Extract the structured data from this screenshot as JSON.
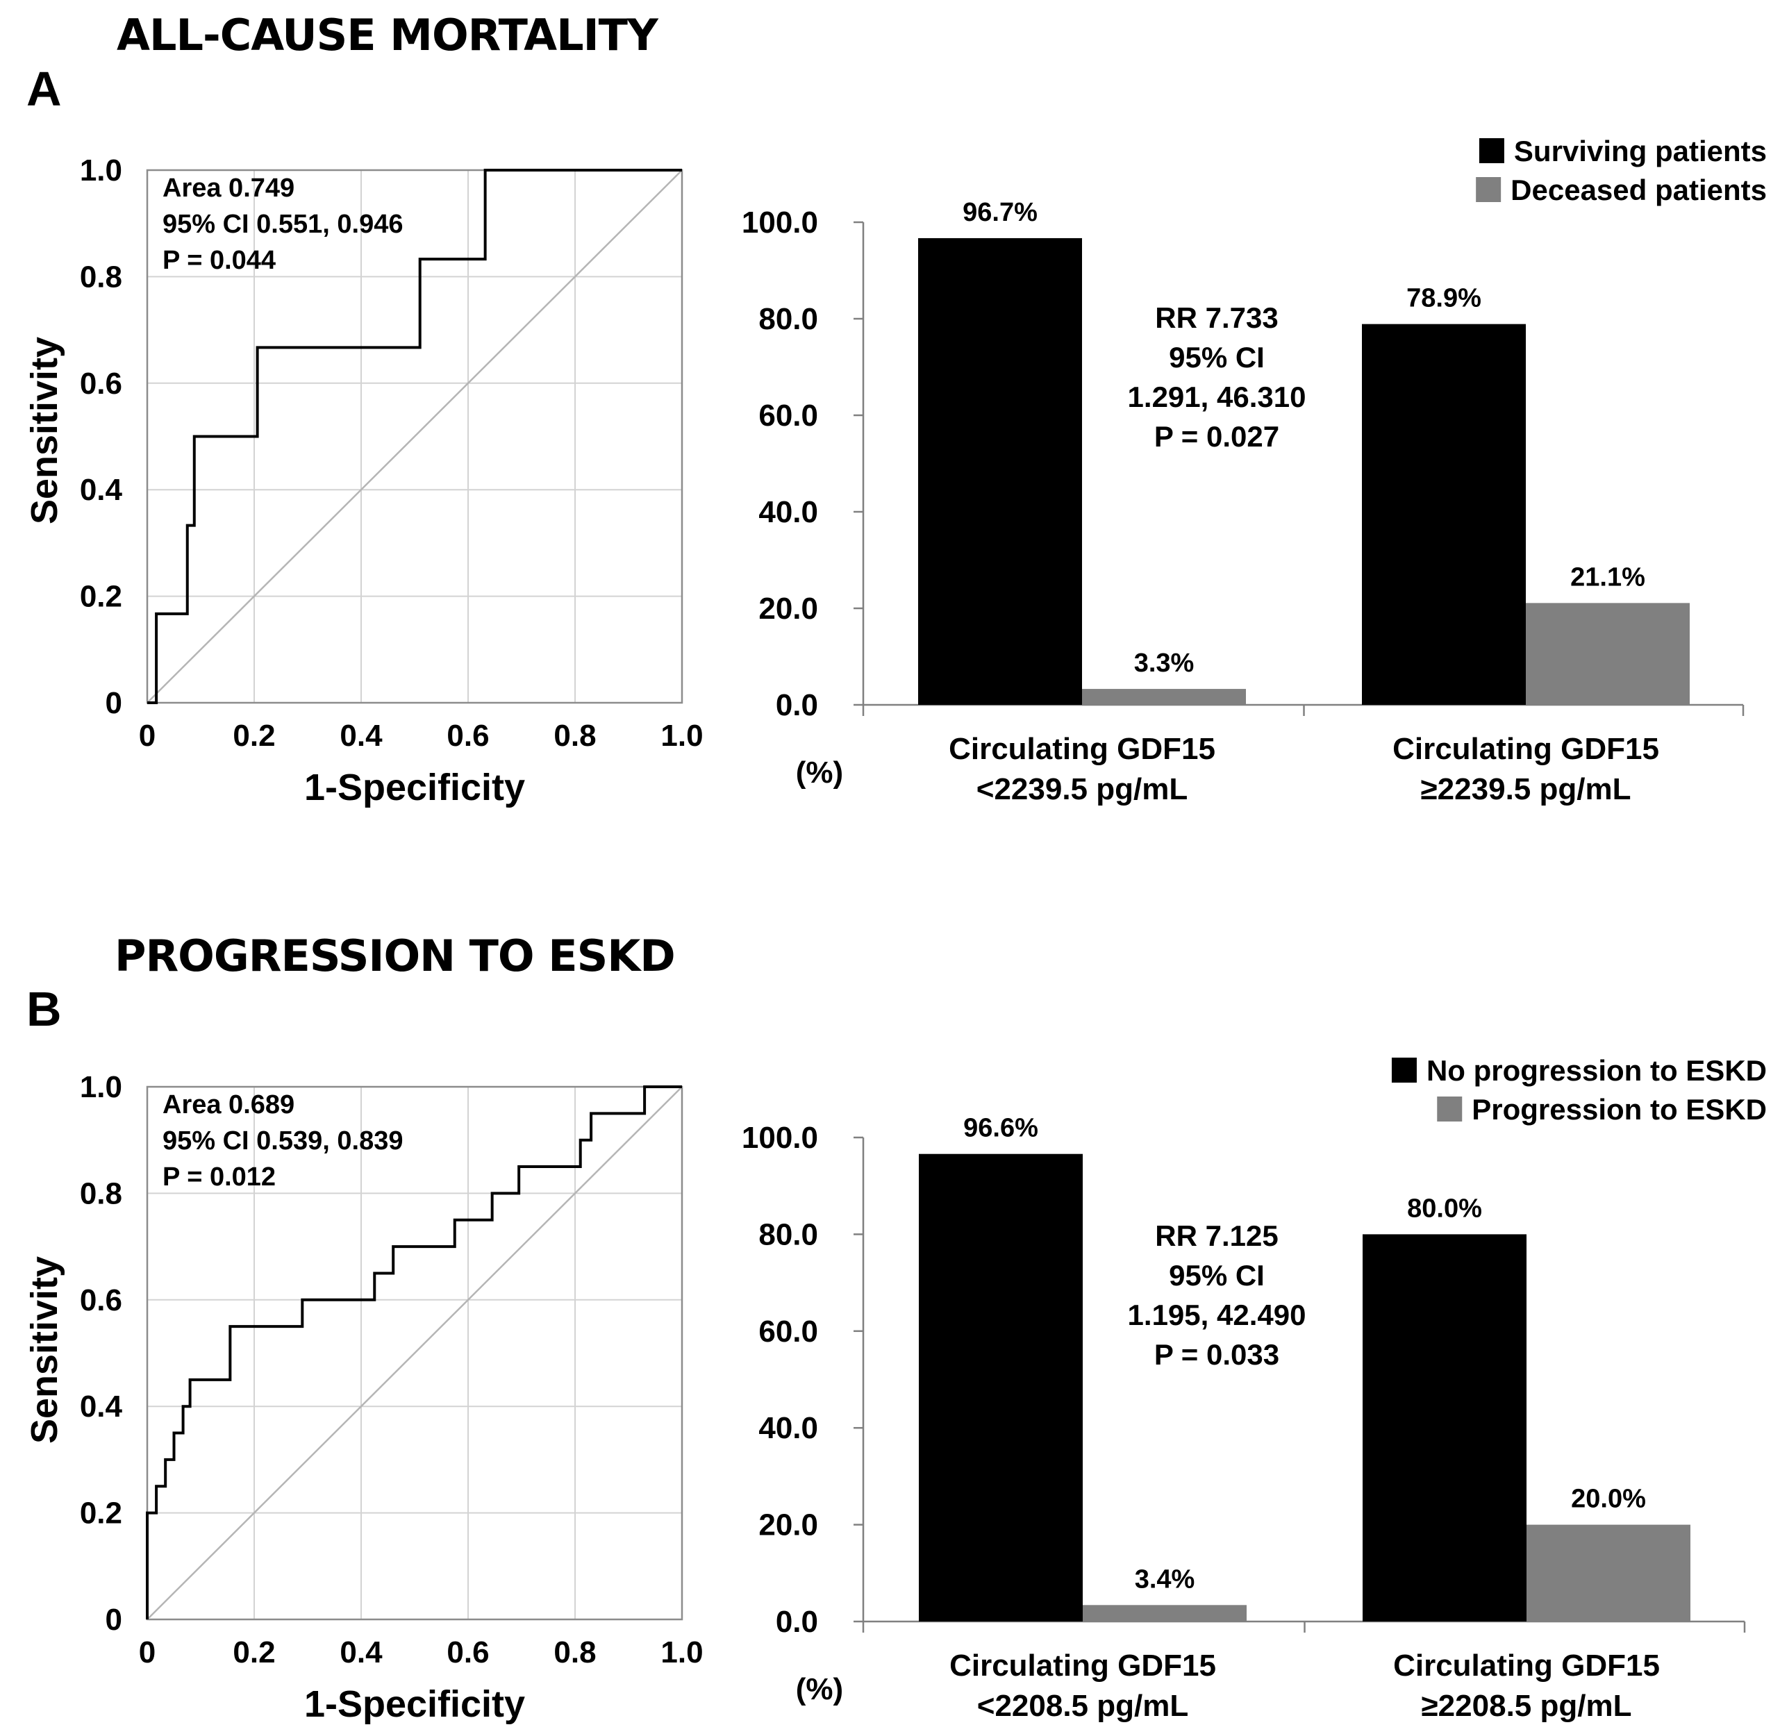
{
  "sections": [
    {
      "title": "ALL-CAUSE MORTALITY",
      "letter": "A",
      "roc": {
        "xlabel": "1-Specificity",
        "ylabel": "Sensitivity",
        "annot": [
          "Area 0.749",
          "95% CI 0.551, 0.946",
          "P = 0.044"
        ]
      },
      "bar": {
        "rr": [
          "RR 7.733",
          "95% CI",
          "1.291, 46.310",
          "P = 0.027"
        ],
        "unit": "(%)",
        "categories": [
          [
            "Circulating GDF15",
            "<2239.5 pg/mL"
          ],
          [
            "Circulating GDF15",
            "≥2239.5 pg/mL"
          ]
        ],
        "legend": [
          "Surviving patients",
          "Deceased patients"
        ],
        "value_labels": [
          [
            "96.7%",
            "3.3%"
          ],
          [
            "78.9%",
            "21.1%"
          ]
        ]
      }
    },
    {
      "title": "PROGRESSION TO ESKD",
      "letter": "B",
      "roc": {
        "xlabel": "1-Specificity",
        "ylabel": "Sensitivity",
        "annot": [
          "Area 0.689",
          "95% CI 0.539, 0.839",
          "P = 0.012"
        ]
      },
      "bar": {
        "rr": [
          "RR 7.125",
          "95% CI",
          "1.195, 42.490",
          "P = 0.033"
        ],
        "unit": "(%)",
        "categories": [
          [
            "Circulating GDF15",
            "<2208.5 pg/mL"
          ],
          [
            "Circulating GDF15",
            "≥2208.5 pg/mL"
          ]
        ],
        "legend": [
          "No progression to ESKD",
          "Progression to ESKD"
        ],
        "value_labels": [
          [
            "96.6%",
            "3.4%"
          ],
          [
            "80.0%",
            "20.0%"
          ]
        ]
      }
    }
  ],
  "colors": {
    "series1": "#000000",
    "series2": "#808080",
    "grid": "#d3d3d3",
    "diagonal": "#b5b5b5"
  },
  "chart_data": [
    {
      "type": "line",
      "title": "ALL-CAUSE MORTALITY — ROC",
      "xlabel": "1-Specificity",
      "ylabel": "Sensitivity",
      "xlim": [
        0,
        1
      ],
      "ylim": [
        0,
        1
      ],
      "xticks": [
        "0",
        "0.2",
        "0.4",
        "0.6",
        "0.8",
        "1.0"
      ],
      "yticks": [
        "0",
        "0.2",
        "0.4",
        "0.6",
        "0.8",
        "1.0"
      ],
      "grid": true,
      "series": [
        {
          "name": "ROC",
          "x": [
            0,
            0.017,
            0.017,
            0.075,
            0.075,
            0.088,
            0.088,
            0.206,
            0.206,
            0.51,
            0.51,
            0.632,
            0.632,
            1.0
          ],
          "y": [
            0,
            0,
            0.167,
            0.167,
            0.333,
            0.333,
            0.5,
            0.5,
            0.667,
            0.667,
            0.833,
            0.833,
            1.0,
            1.0
          ]
        },
        {
          "name": "Reference",
          "x": [
            0,
            1
          ],
          "y": [
            0,
            1
          ]
        }
      ]
    },
    {
      "type": "bar",
      "title": "ALL-CAUSE MORTALITY",
      "ylabel": "(%)",
      "ylim": [
        0,
        100
      ],
      "yticks": [
        "0.0",
        "20.0",
        "40.0",
        "60.0",
        "80.0",
        "100.0"
      ],
      "categories": [
        "Circulating GDF15 <2239.5 pg/mL",
        "Circulating GDF15 ≥2239.5 pg/mL"
      ],
      "series": [
        {
          "name": "Surviving patients",
          "values": [
            96.7,
            78.9
          ]
        },
        {
          "name": "Deceased patients",
          "values": [
            3.3,
            21.1
          ]
        }
      ]
    },
    {
      "type": "line",
      "title": "PROGRESSION TO ESKD — ROC",
      "xlabel": "1-Specificity",
      "ylabel": "Sensitivity",
      "xlim": [
        0,
        1
      ],
      "ylim": [
        0,
        1
      ],
      "xticks": [
        "0",
        "0.2",
        "0.4",
        "0.6",
        "0.8",
        "1.0"
      ],
      "yticks": [
        "0",
        "0.2",
        "0.4",
        "0.6",
        "0.8",
        "1.0"
      ],
      "grid": true,
      "series": [
        {
          "name": "ROC",
          "x": [
            0,
            0,
            0.017,
            0.017,
            0.034,
            0.034,
            0.05,
            0.05,
            0.067,
            0.067,
            0.08,
            0.08,
            0.097,
            0.097,
            0.155,
            0.155,
            0.29,
            0.29,
            0.425,
            0.425,
            0.46,
            0.46,
            0.575,
            0.575,
            0.645,
            0.645,
            0.695,
            0.695,
            0.81,
            0.81,
            0.83,
            0.83,
            0.93,
            0.93,
            1.0
          ],
          "y": [
            0,
            0.2,
            0.2,
            0.25,
            0.25,
            0.3,
            0.3,
            0.35,
            0.35,
            0.4,
            0.4,
            0.45,
            0.45,
            0.45,
            0.45,
            0.55,
            0.55,
            0.6,
            0.6,
            0.65,
            0.65,
            0.7,
            0.7,
            0.75,
            0.75,
            0.8,
            0.8,
            0.85,
            0.85,
            0.9,
            0.9,
            0.95,
            0.95,
            1.0,
            1.0
          ]
        },
        {
          "name": "Reference",
          "x": [
            0,
            1
          ],
          "y": [
            0,
            1
          ]
        }
      ]
    },
    {
      "type": "bar",
      "title": "PROGRESSION TO ESKD",
      "ylabel": "(%)",
      "ylim": [
        0,
        100
      ],
      "yticks": [
        "0.0",
        "20.0",
        "40.0",
        "60.0",
        "80.0",
        "100.0"
      ],
      "categories": [
        "Circulating GDF15 <2208.5 pg/mL",
        "Circulating GDF15 ≥2208.5 pg/mL"
      ],
      "series": [
        {
          "name": "No progression to ESKD",
          "values": [
            96.6,
            80.0
          ]
        },
        {
          "name": "Progression to ESKD",
          "values": [
            3.4,
            20.0
          ]
        }
      ]
    }
  ]
}
